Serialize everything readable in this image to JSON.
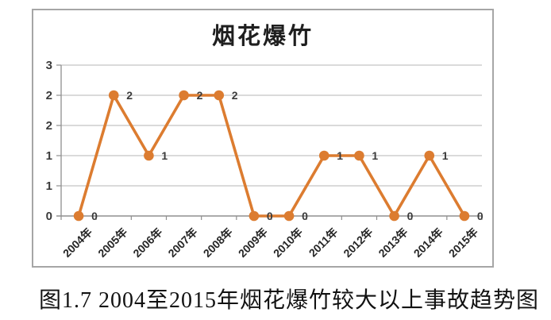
{
  "figure": {
    "caption": "图1.7 2004至2015年烟花爆竹较大以上事故趋势图"
  },
  "chart_data": {
    "type": "line",
    "title": "烟花爆竹",
    "categories": [
      "2004年",
      "2005年",
      "2006年",
      "2007年",
      "2008年",
      "2009年",
      "2010年",
      "2011年",
      "2012年",
      "2013年",
      "2014年",
      "2015年"
    ],
    "values": [
      0,
      2,
      1,
      2,
      2,
      0,
      0,
      1,
      1,
      0,
      1,
      0
    ],
    "data_labels": [
      "0",
      "2",
      "1",
      "2",
      "2",
      "0",
      "0",
      "1",
      "1",
      "0",
      "1",
      "0"
    ],
    "xlabel": "",
    "ylabel": "",
    "y_axis": {
      "tick_labels_top_to_bottom": [
        "3",
        "2",
        "2",
        "1",
        "1",
        "0"
      ],
      "min": 0,
      "max": 2.5,
      "major_unit": 0.5
    },
    "grid": "horizontal",
    "legend": "none",
    "colors": {
      "series": "#dc7c30",
      "marker": "#dc7c30",
      "gridline": "#c4c4c4",
      "axis": "#8f8f8f",
      "y_tick_label": "#3b3b3b",
      "data_label": "#3b3b3b",
      "x_tick_label": "#262626",
      "title": "#1f1f1f",
      "chart_border": "#a6a6a6",
      "caption": "#121212"
    }
  }
}
